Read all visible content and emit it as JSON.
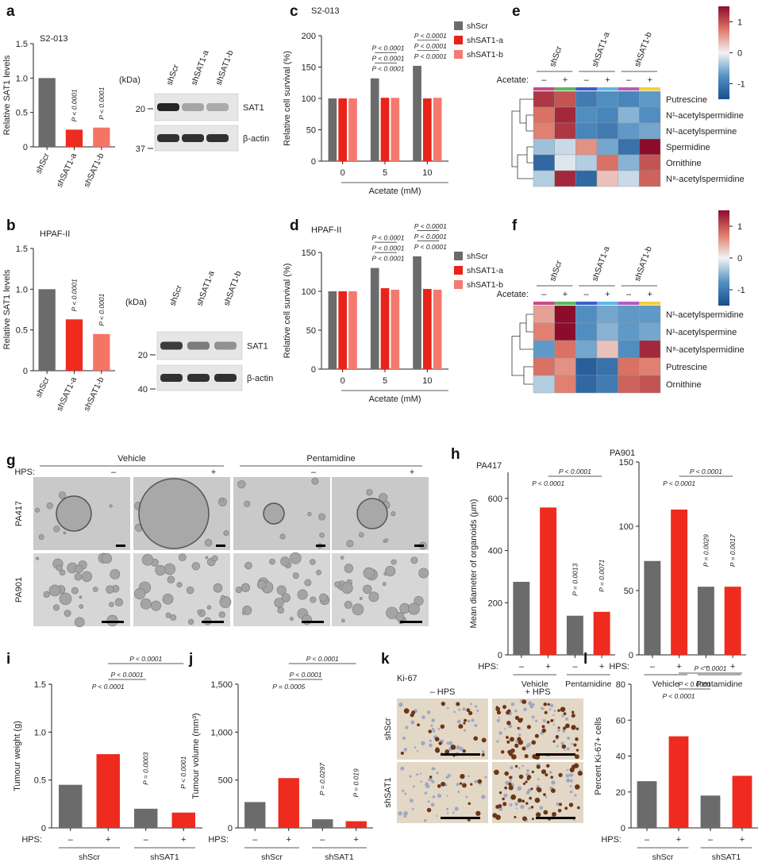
{
  "chart_data": [
    {
      "type": "bar",
      "label": "a",
      "title": "S2-013",
      "ylabel": "Relative SAT1 levels",
      "categories": [
        "shScr",
        "shSAT1-a",
        "shSAT1-b"
      ],
      "values": [
        1.0,
        0.25,
        0.28
      ],
      "colors": [
        "#6b6b6b",
        "#ee2b1e",
        "#f47466"
      ],
      "ylim": [
        0,
        1.5
      ],
      "yticks": [
        0,
        0.5,
        {
          "value": 1,
          "label": "1.0"
        },
        1.5
      ],
      "pvalue_labels": [
        null,
        "P < 0.0001",
        "P < 0.0001"
      ]
    },
    {
      "type": "bar",
      "label": "b",
      "title": "HPAF-II",
      "ylabel": "Relative SAT1 levels",
      "categories": [
        "shScr",
        "shSAT1-a",
        "shSAT1-b"
      ],
      "values": [
        1.0,
        0.63,
        0.45
      ],
      "colors": [
        "#6b6b6b",
        "#ee2b1e",
        "#f47466"
      ],
      "ylim": [
        0,
        1.5
      ],
      "yticks": [
        0,
        0.5,
        {
          "value": 1,
          "label": "1.0"
        },
        1.5
      ],
      "pvalue_labels": [
        null,
        "P < 0.0001",
        "P < 0.0001"
      ]
    },
    {
      "type": "grouped_bar",
      "label": "c",
      "title": "S2-013",
      "ylabel": "Relative cell survival (%)",
      "xlabel": "Acetate (mM)",
      "categories": [
        "0",
        "5",
        "10"
      ],
      "series": [
        {
          "name": "shScr",
          "color": "#6b6b6b",
          "values": [
            100,
            132,
            152
          ]
        },
        {
          "name": "shSAT1-a",
          "color": "#e8231a",
          "values": [
            100,
            101,
            100
          ]
        },
        {
          "name": "shSAT1-b",
          "color": "#f47a70",
          "values": [
            100,
            101,
            101
          ]
        }
      ],
      "ylim": [
        0,
        200
      ],
      "yticks": [
        0,
        50,
        100,
        150,
        200
      ],
      "pvalue_labels": [
        [],
        [
          "P < 0.0001",
          "P < 0.0001",
          "P < 0.0001"
        ],
        [
          "P < 0.0001",
          "P < 0.0001",
          "P < 0.0001"
        ]
      ]
    },
    {
      "type": "grouped_bar",
      "label": "d",
      "title": "HPAF-II",
      "ylabel": "Relative cell survival (%)",
      "xlabel": "Acetate (mM)",
      "categories": [
        "0",
        "5",
        "10"
      ],
      "series": [
        {
          "name": "shScr",
          "color": "#6b6b6b",
          "values": [
            100,
            130,
            145
          ]
        },
        {
          "name": "shSAT1-a",
          "color": "#e8231a",
          "values": [
            100,
            104,
            103
          ]
        },
        {
          "name": "shSAT1-b",
          "color": "#f47a70",
          "values": [
            100,
            102,
            102
          ]
        }
      ],
      "ylim": [
        0,
        150
      ],
      "yticks": [
        0,
        50,
        100,
        150
      ],
      "pvalue_labels": [
        [],
        [
          "P < 0.0001",
          "P < 0.0001",
          "P < 0.0001"
        ],
        [
          "P < 0.0001",
          "P < 0.0001",
          "P < 0.0001"
        ]
      ]
    },
    {
      "type": "heatmap",
      "label": "e",
      "column_groups": [
        "shScr",
        "shSAT1-a",
        "shSAT1-b"
      ],
      "condition_label": "Acetate:",
      "conditions": [
        "–",
        "+",
        "–",
        "+",
        "–",
        "+"
      ],
      "rows": [
        "Putrescine",
        "N¹-acetylspermidine",
        "N¹-acetylspermine",
        "Spermidine",
        "Ornithine",
        "N⁸-acetylspermidine"
      ],
      "values": [
        [
          1.2,
          1.0,
          -1.0,
          -0.8,
          -0.9,
          -0.7
        ],
        [
          0.8,
          1.3,
          -0.8,
          -0.9,
          -0.5,
          -0.8
        ],
        [
          0.7,
          1.2,
          -0.9,
          -1.0,
          -0.7,
          -0.6
        ],
        [
          -0.4,
          -0.2,
          0.6,
          -0.6,
          -1.1,
          1.5
        ],
        [
          -1.2,
          -0.1,
          -0.3,
          0.8,
          -0.5,
          1.0
        ],
        [
          -0.3,
          1.3,
          -1.2,
          0.3,
          -0.2,
          0.9
        ]
      ],
      "clim": [
        -1.5,
        1.5
      ],
      "cticks": [
        -1,
        0,
        1
      ]
    },
    {
      "type": "heatmap",
      "label": "f",
      "column_groups": [
        "shScr",
        "shSAT1-a",
        "shSAT1-b"
      ],
      "condition_label": "Acetate:",
      "conditions": [
        "–",
        "+",
        "–",
        "+",
        "–",
        "+"
      ],
      "rows": [
        "N¹-acetylspermidine",
        "N¹-acetylspermine",
        "N⁸-acetylspermidine",
        "Putrescine",
        "Ornithine"
      ],
      "values": [
        [
          0.5,
          1.6,
          -0.8,
          -0.6,
          -0.7,
          -0.7
        ],
        [
          0.7,
          1.5,
          -0.8,
          -0.5,
          -0.7,
          -0.6
        ],
        [
          -0.7,
          0.8,
          -0.6,
          0.3,
          -0.8,
          1.3
        ],
        [
          0.8,
          0.6,
          -1.3,
          -1.1,
          0.8,
          0.7
        ],
        [
          -0.3,
          0.7,
          -1.2,
          -1.0,
          0.9,
          1.0
        ]
      ],
      "clim": [
        -1.5,
        1.5
      ],
      "cticks": [
        -1,
        0,
        1
      ]
    },
    {
      "type": "bar",
      "label": "h",
      "title": "PA417",
      "ylabel": "Mean diameter of organoids (μm)",
      "categories": [
        "–",
        "+",
        "–",
        "+"
      ],
      "row_label": "HPS:",
      "groups": [
        "Vehicle",
        "Pentamidine"
      ],
      "values": [
        280,
        565,
        150,
        165
      ],
      "colors": [
        "#6b6b6b",
        "#ee2b1e",
        "#6b6b6b",
        "#ee2b1e"
      ],
      "ylim": [
        0,
        700
      ],
      "yticks": [
        0,
        200,
        400,
        600
      ],
      "pvalue_labels": [
        null,
        "P < 0.0001",
        "P = 0.0013",
        "P = 0.0071"
      ],
      "bracket_labels": [
        null,
        null,
        null,
        "P < 0.0001"
      ]
    },
    {
      "type": "bar",
      "title": "PA901",
      "categories": [
        "–",
        "+",
        "–",
        "+"
      ],
      "row_label": "HPS:",
      "groups": [
        "Vehicle",
        "Pentamidine"
      ],
      "values": [
        73,
        113,
        53,
        53
      ],
      "colors": [
        "#6b6b6b",
        "#ee2b1e",
        "#6b6b6b",
        "#ee2b1e"
      ],
      "ylim": [
        0,
        150
      ],
      "yticks": [
        0,
        50,
        100,
        150
      ],
      "pvalue_labels": [
        null,
        "P < 0.0001",
        "P = 0.0029",
        "P = 0.0017"
      ],
      "bracket_labels": [
        null,
        null,
        null,
        "P < 0.0001"
      ]
    },
    {
      "type": "bar",
      "label": "i",
      "ylabel": "Tumour weight (g)",
      "categories": [
        "–",
        "+",
        "–",
        "+"
      ],
      "row_label": "HPS:",
      "groups": [
        "shScr",
        "shSAT1"
      ],
      "values": [
        0.45,
        0.77,
        0.2,
        0.16
      ],
      "colors": [
        "#6b6b6b",
        "#ee2b1e",
        "#6b6b6b",
        "#ee2b1e"
      ],
      "ylim": [
        0,
        1.5
      ],
      "yticks": [
        0,
        0.5,
        {
          "value": 1,
          "label": "1.0"
        },
        1.5
      ],
      "pvalue_labels": [
        null,
        "P < 0.0001",
        "P = 0.0003",
        "P < 0.0001"
      ],
      "bracket_labels": [
        null,
        null,
        "P < 0.0001",
        "P < 0.0001"
      ]
    },
    {
      "type": "bar",
      "label": "j",
      "ylabel": "Tumour volume (mm³)",
      "categories": [
        "–",
        "+",
        "–",
        "+"
      ],
      "row_label": "HPS:",
      "groups": [
        "shScr",
        "shSAT1"
      ],
      "values": [
        270,
        520,
        90,
        70
      ],
      "colors": [
        "#6b6b6b",
        "#ee2b1e",
        "#6b6b6b",
        "#ee2b1e"
      ],
      "ylim": [
        0,
        1500
      ],
      "yticks": [
        0,
        500,
        {
          "value": 1000,
          "label": "1,000"
        },
        {
          "value": 1500,
          "label": "1,500"
        }
      ],
      "pvalue_labels": [
        null,
        "P = 0.0005",
        "P = 0.0297",
        "P = 0.019"
      ],
      "bracket_labels": [
        null,
        null,
        "P < 0.0001",
        "P < 0.0001"
      ]
    },
    {
      "type": "bar",
      "label": "l",
      "ylabel": "Percent Ki-67+ cells",
      "categories": [
        "–",
        "+",
        "–",
        "+"
      ],
      "row_label": "HPS:",
      "groups": [
        "shScr",
        "shSAT1"
      ],
      "values": [
        26,
        51,
        18,
        29
      ],
      "colors": [
        "#6b6b6b",
        "#ee2b1e",
        "#6b6b6b",
        "#ee2b1e"
      ],
      "ylim": [
        0,
        80
      ],
      "yticks": [
        0,
        20,
        40,
        60,
        80
      ],
      "pvalue_labels": [
        null,
        "P < 0.0001",
        null,
        null
      ],
      "bracket_labels": [
        null,
        null,
        "P < 0.0001",
        "P < 0.0001"
      ]
    }
  ],
  "blots": [
    {
      "kda_label": "(kDa)",
      "markers": [
        20,
        37
      ],
      "lanes": [
        "shScr",
        "shSAT1-a",
        "shSAT1-b"
      ],
      "bands": [
        "SAT1",
        "β-actin"
      ]
    },
    {
      "kda_label": "(kDa)",
      "markers": [
        20,
        40
      ],
      "lanes": [
        "shScr",
        "shSAT1-a",
        "shSAT1-b"
      ],
      "bands": [
        "SAT1",
        "β-actin"
      ]
    }
  ],
  "image_panels": [
    {
      "label": "g",
      "groups": [
        "Vehicle",
        "Pentamidine"
      ],
      "condition_label": "HPS:",
      "conditions": [
        "–",
        "+",
        "–",
        "+"
      ],
      "rows": [
        "PA417",
        "PA901"
      ]
    },
    {
      "label": "k",
      "title": "Ki-67",
      "columns": [
        "– HPS",
        "+ HPS"
      ],
      "rows": [
        "shScr",
        "shSAT1"
      ]
    }
  ]
}
